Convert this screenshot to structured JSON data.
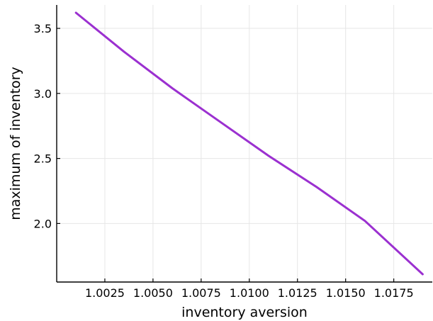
{
  "chart_data": {
    "type": "line",
    "xlabel": "inventory aversion",
    "ylabel": "maximum of inventory",
    "xlim": [
      1.0,
      1.0195
    ],
    "ylim": [
      1.55,
      3.68
    ],
    "x_ticks": [
      1.0025,
      1.005,
      1.0075,
      1.01,
      1.0125,
      1.015,
      1.0175
    ],
    "x_tick_labels": [
      "1.0025",
      "1.0050",
      "1.0075",
      "1.0100",
      "1.0125",
      "1.0150",
      "1.0175"
    ],
    "y_ticks": [
      2.0,
      2.5,
      3.0,
      3.5
    ],
    "y_tick_labels": [
      "2.0",
      "2.5",
      "3.0",
      "3.5"
    ],
    "grid": true,
    "legend": "none",
    "series": [
      {
        "color": "#9b30d0",
        "x": [
          1.001,
          1.0035,
          1.006,
          1.0085,
          1.011,
          1.0135,
          1.016,
          1.019
        ],
        "y": [
          3.62,
          3.32,
          3.04,
          2.78,
          2.52,
          2.28,
          2.02,
          1.61
        ]
      }
    ]
  }
}
